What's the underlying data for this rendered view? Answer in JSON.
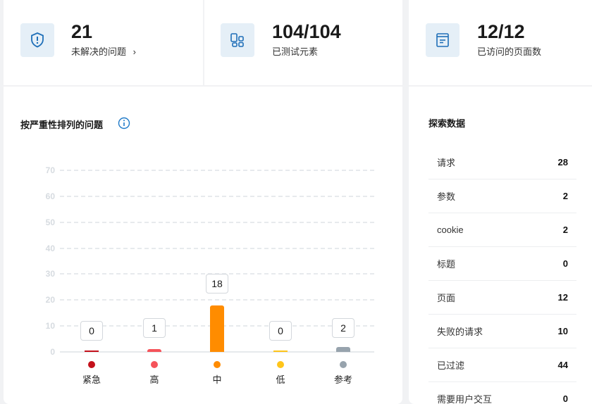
{
  "stats": [
    {
      "value": "21",
      "label": "未解决的问题",
      "icon": "shield-alert-icon"
    },
    {
      "value": "104/104",
      "label": "已测试元素",
      "icon": "elements-icon"
    },
    {
      "value": "12/12",
      "label": "已访问的页面数",
      "icon": "page-icon"
    }
  ],
  "chart_title": "按严重性排列的问题",
  "chart_data": {
    "type": "bar",
    "title": "按严重性排列的问题",
    "categories": [
      "紧急",
      "高",
      "中",
      "低",
      "参考"
    ],
    "values": [
      0,
      1,
      18,
      0,
      2
    ],
    "colors": [
      "#c4111b",
      "#f5535a",
      "#ff8c00",
      "#ffc51a",
      "#97a3ad"
    ],
    "ylim": [
      0,
      70
    ],
    "yticks": [
      0,
      10,
      20,
      30,
      40,
      50,
      60,
      70
    ],
    "grid": true
  },
  "explore": {
    "title": "探索数据",
    "rows": [
      {
        "label": "请求",
        "value": "28"
      },
      {
        "label": "参数",
        "value": "2"
      },
      {
        "label": "cookie",
        "value": "2"
      },
      {
        "label": "标题",
        "value": "0"
      },
      {
        "label": "页面",
        "value": "12"
      },
      {
        "label": "失败的请求",
        "value": "10"
      },
      {
        "label": "已过滤",
        "value": "44"
      },
      {
        "label": "需要用户交互",
        "value": "0"
      }
    ]
  }
}
